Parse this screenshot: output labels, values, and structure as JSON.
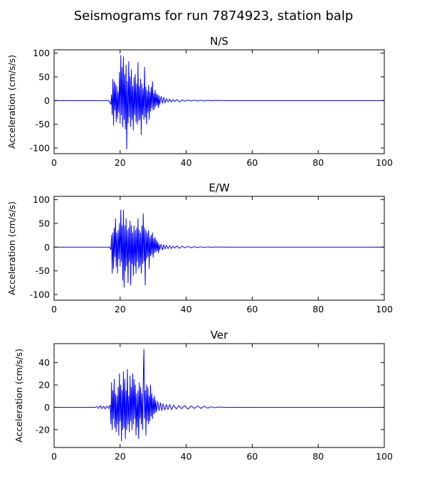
{
  "figure": {
    "title": "Seismograms for run 7874923, station balp"
  },
  "chart_data": [
    {
      "type": "line",
      "title": "N/S",
      "ylabel": "Acceleration (cm/s/s)",
      "xlabel": "",
      "xlim": [
        0,
        100
      ],
      "ylim": [
        -112,
        107
      ],
      "xticks": [
        0,
        20,
        40,
        60,
        80,
        100
      ],
      "yticks": [
        -100,
        -50,
        0,
        50,
        100
      ],
      "grid": false,
      "color": "#0000ff",
      "series": [
        {
          "x": [
            0,
            16.5,
            17.2,
            17.4,
            17.6,
            17.8,
            18.0,
            18.2,
            18.4,
            18.6,
            18.8,
            19.0,
            19.2,
            19.4,
            19.6,
            19.8,
            20.0,
            20.2,
            20.4,
            20.6,
            20.8,
            21.0,
            21.2,
            21.4,
            21.6,
            21.8,
            22.0,
            22.2,
            22.4,
            22.6,
            22.8,
            23.0,
            23.2,
            23.4,
            23.6,
            23.8,
            24.0,
            24.2,
            24.4,
            24.6,
            24.8,
            25.0,
            25.2,
            25.4,
            25.6,
            25.8,
            26.0,
            26.2,
            26.4,
            26.6,
            26.8,
            27.0,
            27.2,
            27.4,
            27.6,
            27.8,
            28.0,
            28.2,
            28.4,
            28.6,
            28.8,
            29.0,
            29.2,
            29.4,
            29.6,
            29.8,
            30.0,
            30.2,
            30.4,
            30.6,
            30.8,
            31.0,
            31.2,
            31.4,
            31.6,
            31.8,
            32.0,
            32.4,
            32.8,
            33.2,
            33.6,
            34.0,
            34.5,
            35.0,
            35.5,
            36.0,
            36.6,
            37.2,
            38.0,
            38.8,
            39.6,
            40.5,
            41.5,
            42.5,
            43.5,
            44.5,
            45.5,
            46.5,
            47.5,
            48.5,
            50.0,
            52.0,
            55.0,
            100
          ],
          "y": [
            0,
            0,
            -8,
            12,
            -30,
            45,
            -52,
            40,
            -20,
            35,
            -45,
            30,
            -38,
            18,
            -25,
            60,
            -48,
            95,
            -30,
            70,
            -55,
            92,
            -40,
            55,
            -60,
            75,
            -102,
            40,
            -48,
            82,
            -35,
            50,
            -55,
            65,
            -40,
            30,
            -62,
            48,
            -30,
            55,
            -45,
            35,
            -50,
            80,
            -42,
            30,
            -40,
            45,
            -72,
            35,
            -30,
            25,
            -40,
            70,
            -35,
            28,
            -50,
            20,
            -25,
            32,
            -40,
            18,
            -22,
            28,
            -15,
            40,
            -20,
            15,
            -18,
            22,
            -12,
            14,
            -10,
            12,
            -15,
            10,
            -8,
            9,
            -6,
            7,
            -5,
            4,
            -3,
            3,
            -3,
            2,
            -2,
            2,
            -3,
            1.5,
            -1.5,
            1.2,
            -1,
            1,
            -1,
            0.8,
            -0.8,
            0.6,
            -0.5,
            0.4,
            0.2,
            0,
            0,
            0
          ]
        }
      ]
    },
    {
      "type": "line",
      "title": "E/W",
      "ylabel": "Acceleration (cm/s/s)",
      "xlabel": "",
      "xlim": [
        0,
        100
      ],
      "ylim": [
        -112,
        107
      ],
      "xticks": [
        0,
        20,
        40,
        60,
        80,
        100
      ],
      "yticks": [
        -100,
        -50,
        0,
        50,
        100
      ],
      "grid": false,
      "color": "#0000ff",
      "series": [
        {
          "x": [
            0,
            16.8,
            17.2,
            17.4,
            17.6,
            17.8,
            18.0,
            18.2,
            18.4,
            18.6,
            18.8,
            19.0,
            19.2,
            19.4,
            19.6,
            19.8,
            20.0,
            20.2,
            20.4,
            20.6,
            20.8,
            21.0,
            21.2,
            21.4,
            21.6,
            21.8,
            22.0,
            22.2,
            22.4,
            22.6,
            22.8,
            23.0,
            23.2,
            23.4,
            23.6,
            23.8,
            24.0,
            24.2,
            24.4,
            24.6,
            24.8,
            25.0,
            25.2,
            25.4,
            25.6,
            25.8,
            26.0,
            26.2,
            26.4,
            26.6,
            26.8,
            27.0,
            27.2,
            27.4,
            27.6,
            27.8,
            28.0,
            28.2,
            28.4,
            28.6,
            28.8,
            29.0,
            29.2,
            29.4,
            29.6,
            29.8,
            30.0,
            30.2,
            30.4,
            30.6,
            30.8,
            31.0,
            31.2,
            31.4,
            31.6,
            31.8,
            32.0,
            32.4,
            32.8,
            33.2,
            33.6,
            34.0,
            34.5,
            35.0,
            35.5,
            36.0,
            36.6,
            37.2,
            38.0,
            38.8,
            39.6,
            40.5,
            41.5,
            42.5,
            43.5,
            44.5,
            45.5,
            46.5,
            47.5,
            48.5,
            50.0,
            52.0,
            55.0,
            100
          ],
          "y": [
            0,
            0,
            -5,
            25,
            -55,
            30,
            -45,
            40,
            -20,
            60,
            -40,
            30,
            -55,
            35,
            -25,
            50,
            -40,
            78,
            -30,
            45,
            -70,
            78,
            -85,
            45,
            -50,
            60,
            -40,
            35,
            -75,
            40,
            -30,
            55,
            -80,
            45,
            -35,
            30,
            -60,
            45,
            -40,
            35,
            -55,
            40,
            -30,
            60,
            -45,
            35,
            -40,
            30,
            -55,
            45,
            -35,
            70,
            -30,
            40,
            -80,
            35,
            -25,
            30,
            -20,
            35,
            -45,
            20,
            -18,
            25,
            -15,
            30,
            -22,
            18,
            -12,
            20,
            -10,
            14,
            -8,
            10,
            -12,
            6,
            -5,
            6,
            -6,
            5,
            -4,
            4,
            -3,
            3,
            -3,
            2,
            -2,
            2.5,
            -2.5,
            2,
            -1.5,
            1.5,
            -1.2,
            1,
            -1,
            0.8,
            -0.8,
            0.6,
            -0.5,
            0.4,
            0.2,
            0,
            0,
            0
          ]
        }
      ]
    },
    {
      "type": "line",
      "title": "Ver",
      "ylabel": "Acceleration (cm/s/s)",
      "xlabel": "",
      "xlim": [
        0,
        100
      ],
      "ylim": [
        -36,
        57
      ],
      "xticks": [
        0,
        20,
        40,
        60,
        80,
        100
      ],
      "yticks": [
        -20,
        0,
        20,
        40
      ],
      "grid": false,
      "color": "#0000ff",
      "series": [
        {
          "x": [
            0,
            12.5,
            13.0,
            13.5,
            14.0,
            14.5,
            15.0,
            15.5,
            16.0,
            16.5,
            17.0,
            17.2,
            17.4,
            17.6,
            17.8,
            18.0,
            18.2,
            18.4,
            18.6,
            18.8,
            19.0,
            19.2,
            19.4,
            19.6,
            19.8,
            20.0,
            20.2,
            20.4,
            20.6,
            20.8,
            21.0,
            21.2,
            21.4,
            21.6,
            21.8,
            22.0,
            22.2,
            22.4,
            22.6,
            22.8,
            23.0,
            23.2,
            23.4,
            23.6,
            23.8,
            24.0,
            24.2,
            24.4,
            24.6,
            24.8,
            25.0,
            25.2,
            25.4,
            25.6,
            25.8,
            26.0,
            26.2,
            26.4,
            26.6,
            26.8,
            27.0,
            27.2,
            27.4,
            27.6,
            27.8,
            28.0,
            28.2,
            28.4,
            28.6,
            28.8,
            29.0,
            29.2,
            29.4,
            29.6,
            29.8,
            30.0,
            30.2,
            30.4,
            30.6,
            30.8,
            31.0,
            31.4,
            31.8,
            32.2,
            32.6,
            33.0,
            33.5,
            34.0,
            34.5,
            35.0,
            35.6,
            36.2,
            37.0,
            37.8,
            38.6,
            39.5,
            40.5,
            41.5,
            42.5,
            43.5,
            44.5,
            45.5,
            46.5,
            47.5,
            48.5,
            50.0,
            52.0,
            55.0,
            100
          ],
          "y": [
            0,
            0,
            0.8,
            -1,
            1.5,
            -1.2,
            1,
            -1.5,
            1.2,
            -1,
            2,
            -15,
            22,
            -20,
            15,
            -10,
            25,
            -18,
            12,
            -22,
            10,
            -15,
            18,
            -25,
            30,
            -12,
            20,
            -30,
            15,
            -20,
            32,
            -18,
            25,
            -28,
            15,
            -20,
            34,
            -15,
            10,
            -22,
            28,
            -12,
            18,
            -20,
            30,
            -15,
            25,
            -10,
            20,
            -25,
            12,
            -18,
            15,
            -28,
            22,
            -10,
            18,
            -15,
            12,
            -20,
            25,
            52,
            -10,
            15,
            -25,
            20,
            -12,
            18,
            -15,
            10,
            -12,
            20,
            -8,
            12,
            -10,
            8,
            -6,
            10,
            -5,
            6,
            -4,
            5,
            -3,
            4,
            -3,
            3,
            -2.5,
            2.5,
            -2,
            2.5,
            -2,
            2,
            -1.5,
            1.5,
            -1.2,
            1.5,
            -1.5,
            1.2,
            -1,
            1.2,
            -1,
            1,
            -0.8,
            0.5,
            -0.3,
            0.2,
            0,
            0,
            0
          ]
        }
      ]
    }
  ]
}
